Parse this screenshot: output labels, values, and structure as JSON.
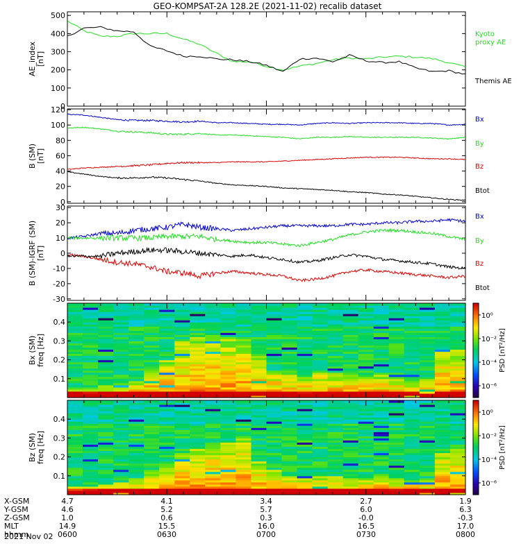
{
  "figure": {
    "title": "GEO-KOMPSAT-2A 128.2E (2021-11-02) recalib dataset"
  },
  "colors": {
    "black": "#000000",
    "green": "#22dd22",
    "red": "#dd0000",
    "blue": "#0000cc"
  },
  "chart_data": [
    {
      "type": "line",
      "panel": "ae",
      "ylabel": "AE_index [nT]",
      "ylabel_line1": "AE_index",
      "ylabel_line2": "[nT]",
      "ylim": [
        0,
        520
      ],
      "yticks": [
        "0",
        "100",
        "200",
        "300",
        "400",
        "500"
      ],
      "ytick_values": [
        0,
        100,
        200,
        300,
        400,
        500
      ],
      "x_range_hhmm": [
        "0600",
        "0800"
      ],
      "x": [
        0,
        5,
        10,
        15,
        20,
        25,
        30,
        35,
        40,
        45,
        50,
        55,
        60,
        65,
        70,
        75,
        80,
        85,
        90,
        95,
        100,
        105,
        110,
        115,
        120
      ],
      "series": [
        {
          "name": "Kyoto proxy AE",
          "legend_line1": "Kyoto",
          "legend_line2": "proxy AE",
          "color": "green",
          "values": [
            470,
            415,
            385,
            385,
            400,
            400,
            400,
            370,
            340,
            290,
            245,
            245,
            220,
            200,
            220,
            235,
            255,
            265,
            260,
            270,
            275,
            270,
            262,
            240,
            215
          ]
        },
        {
          "name": "Themis AE",
          "color": "black",
          "values": [
            385,
            430,
            435,
            415,
            410,
            330,
            305,
            275,
            275,
            260,
            255,
            245,
            225,
            190,
            260,
            265,
            245,
            280,
            250,
            240,
            245,
            210,
            190,
            195,
            175
          ]
        }
      ]
    },
    {
      "type": "line",
      "panel": "bsm",
      "ylabel": "B (SM) [nT]",
      "ylabel_line1": "B (SM)",
      "ylabel_line2": "[nT]",
      "ylim": [
        -2,
        121
      ],
      "yticks": [
        "0",
        "20",
        "40",
        "60",
        "80",
        "100",
        "120"
      ],
      "ytick_values": [
        0,
        20,
        40,
        60,
        80,
        100,
        120
      ],
      "x": [
        0,
        5,
        10,
        15,
        20,
        25,
        30,
        35,
        40,
        45,
        50,
        55,
        60,
        65,
        70,
        75,
        80,
        85,
        90,
        95,
        100,
        105,
        110,
        115,
        120
      ],
      "series": [
        {
          "name": "Bx",
          "color": "blue",
          "values": [
            114,
            113,
            110,
            107,
            106,
            106,
            105,
            104,
            105,
            103,
            103,
            102,
            101,
            101,
            100,
            102,
            103,
            102,
            103,
            103,
            103,
            102,
            102,
            100,
            101
          ]
        },
        {
          "name": "By",
          "color": "green",
          "values": [
            96,
            97,
            95,
            92,
            91,
            90,
            88,
            88,
            89,
            87,
            87,
            86,
            85,
            84,
            82,
            84,
            84,
            85,
            84,
            84,
            84,
            84,
            83,
            82,
            84
          ]
        },
        {
          "name": "Bz",
          "color": "red",
          "values": [
            42,
            44,
            45,
            46,
            47,
            48,
            50,
            51,
            51,
            51,
            52,
            52,
            52,
            53,
            54,
            55,
            56,
            57,
            58,
            58,
            58,
            57,
            56,
            56,
            55
          ]
        },
        {
          "name": "Btot",
          "color": "black",
          "values": [
            39,
            36,
            33,
            31,
            31,
            32,
            31,
            29,
            27,
            24,
            22,
            21,
            20,
            18,
            17,
            16,
            15,
            13,
            12,
            10,
            9,
            7,
            5,
            3,
            2
          ]
        }
      ]
    },
    {
      "type": "line",
      "panel": "dbsm",
      "ylabel": "B (SM)-IGRF (SM) [nT]",
      "ylabel_line1": "B (SM)-IGRF (SM)",
      "ylabel_line2": "[nT]",
      "ylim": [
        -31,
        31
      ],
      "yticks": [
        "-30",
        "-20",
        "-10",
        "0",
        "10",
        "20",
        "30"
      ],
      "ytick_values": [
        -30,
        -20,
        -10,
        0,
        10,
        20,
        30
      ],
      "x": [
        0,
        5,
        10,
        15,
        20,
        25,
        30,
        35,
        40,
        45,
        50,
        55,
        60,
        65,
        70,
        75,
        80,
        85,
        90,
        95,
        100,
        105,
        110,
        115,
        120
      ],
      "series": [
        {
          "name": "Bx",
          "color": "blue",
          "values": [
            10,
            11,
            13,
            13,
            15,
            16,
            17,
            19,
            17,
            16,
            15,
            16,
            17,
            18,
            18,
            18,
            18,
            19,
            19,
            20,
            20,
            21,
            21,
            22,
            21
          ]
        },
        {
          "name": "By",
          "color": "green",
          "values": [
            10,
            10,
            10,
            10,
            10,
            10,
            11,
            11,
            11,
            9,
            8,
            7,
            7,
            6,
            5,
            7,
            9,
            12,
            14,
            15,
            15,
            14,
            13,
            11,
            9
          ]
        },
        {
          "name": "Bz",
          "color": "red",
          "values": [
            -1,
            -2,
            -4,
            -6,
            -7,
            -9,
            -12,
            -13,
            -15,
            -13,
            -12,
            -13,
            -14,
            -15,
            -18,
            -17,
            -15,
            -12,
            -11,
            -12,
            -13,
            -14,
            -15,
            -16,
            -15
          ]
        },
        {
          "name": "Btot",
          "color": "black",
          "values": [
            -2,
            -2,
            -2,
            0,
            1,
            2,
            2,
            1,
            0,
            -1,
            -2,
            -1,
            -3,
            -4,
            -6,
            -5,
            -3,
            -1,
            -2,
            -4,
            -5,
            -6,
            -7,
            -9,
            -10
          ]
        }
      ]
    },
    {
      "type": "heatmap",
      "panel": "spec_bx",
      "ylabel": "Bx (SM) freq [Hz]",
      "ylabel_line1": "Bx (SM)",
      "ylabel_line2": "freq [Hz]",
      "ylim": [
        0.0,
        0.5
      ],
      "yticks": [
        "0.1",
        "0.2",
        "0.3",
        "0.4"
      ],
      "ytick_values": [
        0.1,
        0.2,
        0.3,
        0.4
      ],
      "colorbar_label": "PSD [nT²/Hz]",
      "colorbar_ticks": [
        "10⁰",
        "10⁻²",
        "10⁻⁴",
        "10⁻⁶"
      ],
      "colorbar_tick_log10": [
        0,
        -2,
        -4,
        -6
      ],
      "colorbar_range_log10": [
        -7,
        1
      ],
      "enhanced_band_hz_by_time_bin": [
        0.05,
        0.06,
        0.07,
        0.08,
        0.09,
        0.14,
        0.2,
        0.3,
        0.32,
        0.33,
        0.32,
        0.31,
        0.22,
        0.15,
        0.12,
        0.11,
        0.14,
        0.13,
        0.12,
        0.11,
        0.12,
        0.11,
        0.09,
        0.1,
        0.26,
        0.26
      ]
    },
    {
      "type": "heatmap",
      "panel": "spec_bz",
      "ylabel": "Bz (SM) freq [Hz]",
      "ylabel_line1": "Bz (SM)",
      "ylabel_line2": "freq [Hz]",
      "ylim": [
        0.0,
        0.5
      ],
      "yticks": [
        "0.1",
        "0.2",
        "0.3",
        "0.4"
      ],
      "ytick_values": [
        0.1,
        0.2,
        0.3,
        0.4
      ],
      "colorbar_label": "PSD [nT²/Hz]",
      "colorbar_ticks": [
        "10⁰",
        "10⁻²",
        "10⁻⁴",
        "10⁻⁶"
      ],
      "colorbar_tick_log10": [
        0,
        -2,
        -4,
        -6
      ],
      "colorbar_range_log10": [
        -7,
        1
      ],
      "enhanced_band_hz_by_time_bin": [
        0.04,
        0.05,
        0.06,
        0.07,
        0.09,
        0.13,
        0.17,
        0.22,
        0.25,
        0.27,
        0.28,
        0.3,
        0.18,
        0.13,
        0.1,
        0.09,
        0.1,
        0.1,
        0.09,
        0.09,
        0.1,
        0.09,
        0.08,
        0.09,
        0.22,
        0.24
      ]
    }
  ],
  "ephemeris": {
    "rows": [
      {
        "label": "X-GSM",
        "values": [
          "4.7",
          "4.1",
          "3.4",
          "2.7",
          "1.9"
        ]
      },
      {
        "label": "Y-GSM",
        "values": [
          "4.6",
          "5.2",
          "5.7",
          "6.0",
          "6.3"
        ]
      },
      {
        "label": "Z-GSM",
        "values": [
          "1.0",
          "0.6",
          "0.3",
          "-0.0",
          "-0.3"
        ]
      },
      {
        "label": "MLT",
        "values": [
          "14.9",
          "15.5",
          "16.0",
          "16.5",
          "17.0"
        ]
      },
      {
        "label": "hhmm",
        "values": [
          "0600",
          "0630",
          "0700",
          "0730",
          "0800"
        ]
      }
    ],
    "date": "2021 Nov 02"
  }
}
